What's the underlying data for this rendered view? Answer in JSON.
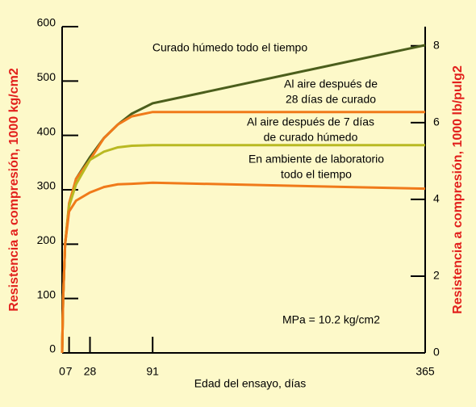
{
  "chart_data": {
    "type": "line",
    "xlabel": "Edad del ensayo, días",
    "ylabel": "Resistencia a compresión, 1000 kg/cm2",
    "y2label": "Resistencia a compresión, 1000 lb/pulg2",
    "annotation": "MPa = 10.2 kg/cm2",
    "xlim": [
      0,
      365
    ],
    "xticks": [
      0,
      7,
      28,
      91,
      365
    ],
    "ylim": [
      0,
      600
    ],
    "yticks": [
      0,
      100,
      200,
      300,
      400,
      500,
      600
    ],
    "y2lim": [
      0,
      8.5
    ],
    "y2ticks": [
      0,
      2,
      4,
      6,
      8
    ],
    "x": [
      0,
      1,
      3,
      7,
      14,
      28,
      42,
      56,
      70,
      91,
      365
    ],
    "series": [
      {
        "name": [
          "Curado húmedo todo el tiempo"
        ],
        "color": "#4b5e1c",
        "values": [
          0,
          100,
          200,
          270,
          320,
          360,
          395,
          420,
          440,
          459,
          566
        ]
      },
      {
        "name": [
          "Al aire después de",
          "28 días de curado"
        ],
        "color": "#f07a1a",
        "values": [
          0,
          100,
          200,
          275,
          320,
          355,
          395,
          420,
          435,
          443,
          443
        ]
      },
      {
        "name": [
          "Al aire después de 7 días",
          "de curado húmedo"
        ],
        "color": "#b9b922",
        "values": [
          0,
          100,
          200,
          270,
          310,
          355,
          370,
          378,
          381,
          382,
          382
        ]
      },
      {
        "name": [
          "En ambiente de laboratorio",
          "todo el tiempo"
        ],
        "color": "#f07a1a",
        "values": [
          0,
          100,
          200,
          260,
          280,
          295,
          305,
          310,
          311,
          313,
          302
        ]
      }
    ]
  }
}
